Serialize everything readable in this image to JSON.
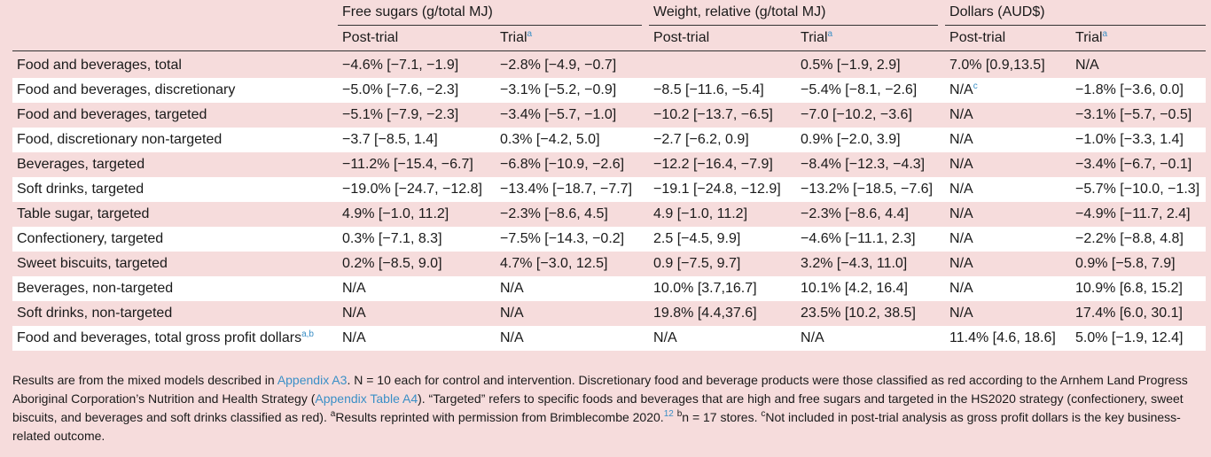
{
  "headers": {
    "group1": "Free sugars (g/total MJ)",
    "group2": "Weight, relative (g/total MJ)",
    "group3": "Dollars (AUD$)",
    "post_trial": "Post-trial",
    "trial": "Trial",
    "trial_sup": "a"
  },
  "rows": [
    {
      "label": "Food and beverages, total",
      "label_sup": "",
      "fs_post": "−4.6% [−7.1, −1.9]",
      "fs_trial": "−2.8% [−4.9, −0.7]",
      "w_post": "",
      "w_trial": "0.5% [−1.9, 2.9]",
      "d_post": "7.0% [0.9,13.5]",
      "d_post_sup": "",
      "d_trial": "N/A"
    },
    {
      "label": "Food and beverages, discretionary",
      "label_sup": "",
      "fs_post": "−5.0% [−7.6, −2.3]",
      "fs_trial": "−3.1% [−5.2, −0.9]",
      "w_post": "−8.5 [−11.6, −5.4]",
      "w_trial": "−5.4% [−8.1, −2.6]",
      "d_post": "N/A",
      "d_post_sup": "c",
      "d_trial": "−1.8% [−3.6, 0.0]"
    },
    {
      "label": "Food and beverages, targeted",
      "label_sup": "",
      "fs_post": "−5.1% [−7.9, −2.3]",
      "fs_trial": "−3.4% [−5.7, −1.0]",
      "w_post": "−10.2 [−13.7, −6.5]",
      "w_trial": "−7.0 [−10.2, −3.6]",
      "d_post": "N/A",
      "d_post_sup": "",
      "d_trial": "−3.1% [−5.7, −0.5]"
    },
    {
      "label": "Food, discretionary non-targeted",
      "label_sup": "",
      "fs_post": "−3.7 [−8.5, 1.4]",
      "fs_trial": "0.3% [−4.2, 5.0]",
      "w_post": "−2.7 [−6.2, 0.9]",
      "w_trial": "0.9% [−2.0, 3.9]",
      "d_post": "N/A",
      "d_post_sup": "",
      "d_trial": "−1.0% [−3.3, 1.4]"
    },
    {
      "label": "Beverages, targeted",
      "label_sup": "",
      "fs_post": "−11.2% [−15.4, −6.7]",
      "fs_trial": "−6.8% [−10.9, −2.6]",
      "w_post": "−12.2 [−16.4, −7.9]",
      "w_trial": "−8.4% [−12.3, −4.3]",
      "d_post": "N/A",
      "d_post_sup": "",
      "d_trial": "−3.4% [−6.7, −0.1]"
    },
    {
      "label": "Soft drinks, targeted",
      "label_sup": "",
      "fs_post": "−19.0% [−24.7, −12.8]",
      "fs_trial": "−13.4% [−18.7, −7.7]",
      "w_post": "−19.1 [−24.8, −12.9]",
      "w_trial": "−13.2% [−18.5, −7.6]",
      "d_post": "N/A",
      "d_post_sup": "",
      "d_trial": "−5.7% [−10.0, −1.3]"
    },
    {
      "label": "Table sugar, targeted",
      "label_sup": "",
      "fs_post": "4.9% [−1.0, 11.2]",
      "fs_trial": "−2.3% [−8.6, 4.5]",
      "w_post": "4.9 [−1.0, 11.2]",
      "w_trial": "−2.3% [−8.6, 4.4]",
      "d_post": "N/A",
      "d_post_sup": "",
      "d_trial": "−4.9% [−11.7, 2.4]"
    },
    {
      "label": "Confectionery, targeted",
      "label_sup": "",
      "fs_post": "0.3% [−7.1, 8.3]",
      "fs_trial": "−7.5% [−14.3, −0.2]",
      "w_post": "2.5 [−4.5, 9.9]",
      "w_trial": "−4.6% [−11.1, 2.3]",
      "d_post": "N/A",
      "d_post_sup": "",
      "d_trial": "−2.2% [−8.8, 4.8]"
    },
    {
      "label": "Sweet biscuits, targeted",
      "label_sup": "",
      "fs_post": "0.2% [−8.5, 9.0]",
      "fs_trial": "4.7% [−3.0, 12.5]",
      "w_post": "0.9 [−7.5, 9.7]",
      "w_trial": "3.2% [−4.3, 11.0]",
      "d_post": "N/A",
      "d_post_sup": "",
      "d_trial": "0.9% [−5.8, 7.9]"
    },
    {
      "label": "Beverages, non-targeted",
      "label_sup": "",
      "fs_post": "N/A",
      "fs_trial": "N/A",
      "w_post": "10.0% [3.7,16.7]",
      "w_trial": "10.1% [4.2, 16.4]",
      "d_post": "N/A",
      "d_post_sup": "",
      "d_trial": "10.9% [6.8, 15.2]"
    },
    {
      "label": "Soft drinks, non-targeted",
      "label_sup": "",
      "fs_post": "N/A",
      "fs_trial": "N/A",
      "w_post": "19.8% [4.4,37.6]",
      "w_trial": "23.5% [10.2, 38.5]",
      "d_post": "N/A",
      "d_post_sup": "",
      "d_trial": "17.4% [6.0, 30.1]"
    },
    {
      "label": "Food and beverages, total gross profit dollars",
      "label_sup": "a,b",
      "fs_post": "N/A",
      "fs_trial": "N/A",
      "w_post": "N/A",
      "w_trial": "N/A",
      "d_post": "11.4% [4.6, 18.6]",
      "d_post_sup": "",
      "d_trial": "5.0% [−1.9, 12.4]"
    }
  ],
  "footnote": {
    "p1": "Results are from the mixed models described in ",
    "link1": "Appendix A3",
    "p2": ". N = 10 each for control and intervention. Discretionary food and beverage products were those classified as red according to the Arnhem Land Progress Aboriginal Corporation’s Nutrition and Health Strategy (",
    "link2": "Appendix Table A4",
    "p3": "). “Targeted” refers to specific foods and beverages that are high and free sugars and targeted in the HS2020 strategy (confectionery, sweet biscuits, and beverages and soft drinks classified as red). ",
    "sup_a": "a",
    "p4": "Results reprinted with permission from Brimblecombe 2020.",
    "sup_ref": "12",
    "p5": " ",
    "sup_b": "b",
    "p6": "n = 17 stores. ",
    "sup_c": "c",
    "p7": "Not included in post-trial analysis as gross profit dollars is the key business-related outcome."
  }
}
